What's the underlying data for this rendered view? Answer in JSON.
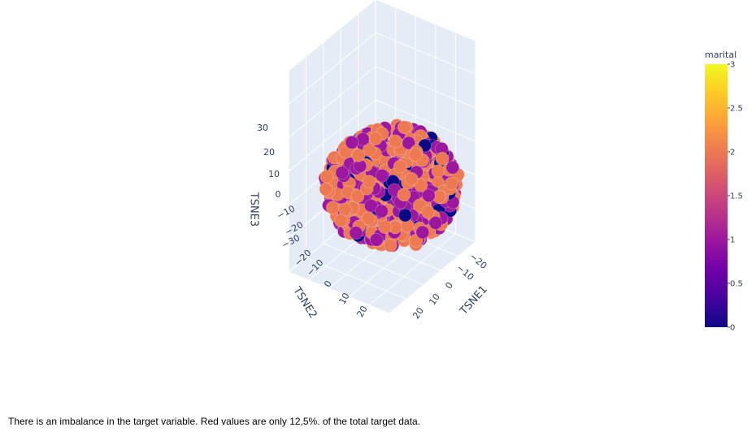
{
  "chart_data": {
    "type": "scatter",
    "dimensions": 3,
    "axes": {
      "x": {
        "title": "TSNE1",
        "ticks": [
          "−20",
          "−10",
          "0",
          "10",
          "20"
        ]
      },
      "y": {
        "title": "TSNE2",
        "ticks": [
          "−20",
          "−10",
          "0",
          "10",
          "20"
        ]
      },
      "z": {
        "title": "TSNE3",
        "ticks": [
          "−30",
          "−20",
          "−10",
          "0",
          "10",
          "20",
          "30"
        ]
      }
    },
    "color_variable": "marital",
    "colorbar": {
      "title": "marital",
      "range": [
        0,
        3
      ],
      "ticks": [
        "0",
        "0.5",
        "1",
        "1.5",
        "2",
        "2.5",
        "3"
      ],
      "colorscale": [
        "#0d0887",
        "#46039f",
        "#7201a8",
        "#9c179e",
        "#bd3786",
        "#d8576b",
        "#ed7953",
        "#fb9f3a",
        "#fdca26",
        "#f0f921"
      ]
    },
    "marker_colors_by_value": {
      "0": "#0d0887",
      "1": "#9c179e",
      "2": "#ed7953"
    },
    "point_groups": [
      {
        "marital": 2,
        "share": 0.55
      },
      {
        "marital": 1,
        "share": 0.37
      },
      {
        "marital": 0,
        "share": 0.08
      }
    ],
    "x_range": [
      -25,
      25
    ],
    "y_range": [
      -25,
      25
    ],
    "z_range": [
      -30,
      30
    ],
    "background": "#e5ecf6",
    "grid": true
  },
  "caption": "There is an imbalance in the target variable. Red values are only 12,5%. of the total target data."
}
